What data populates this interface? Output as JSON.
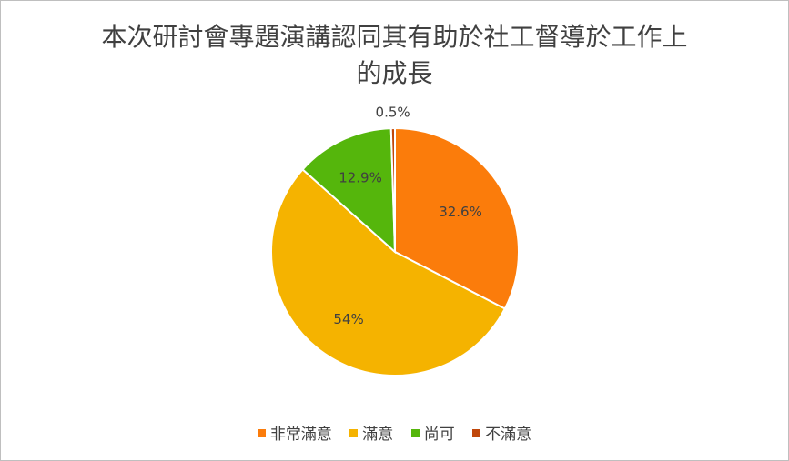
{
  "chart_data": {
    "type": "pie",
    "title_lines": [
      "本次研討會專題演講認同其有助於社工督導於工作上",
      "的成長"
    ],
    "categories": [
      "非常滿意",
      "滿意",
      "尚可",
      "不滿意"
    ],
    "values": [
      32.6,
      54,
      12.9,
      0.5
    ],
    "data_labels": [
      "32.6%",
      "54%",
      "12.9%",
      "0.5%"
    ],
    "colors": [
      "#fb7c0b",
      "#f5b300",
      "#55b60c",
      "#c0470b"
    ],
    "legend_position": "bottom",
    "start_angle": "top, clockwise"
  }
}
